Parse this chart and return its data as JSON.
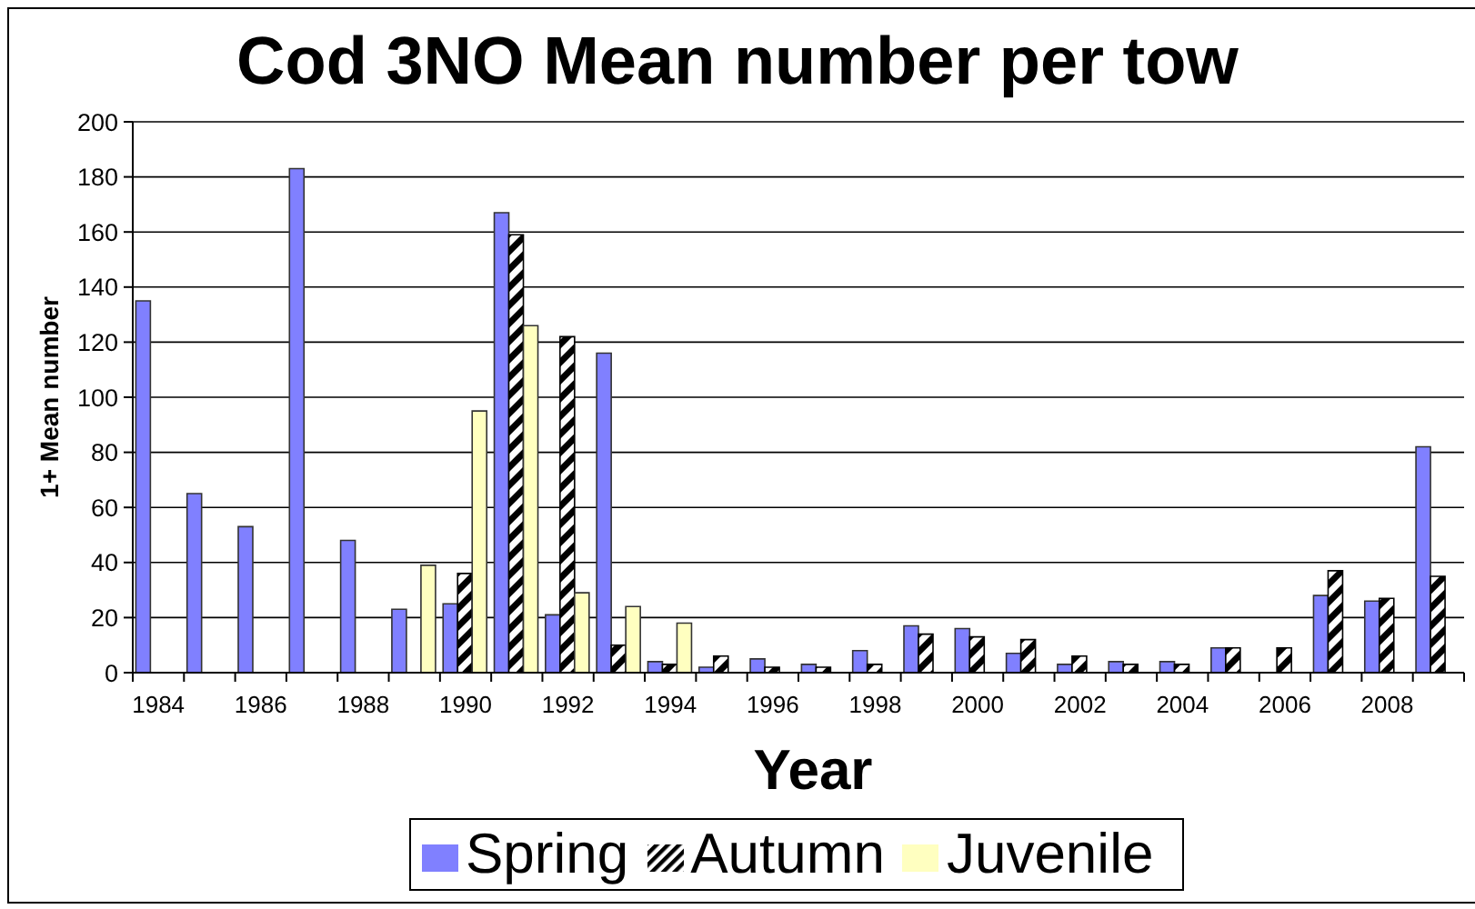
{
  "chart_data": {
    "type": "bar",
    "title": "Cod 3NO Mean number per tow",
    "xlabel": "Year",
    "ylabel": "1+ Mean number",
    "categories": [
      "1984",
      null,
      "1986",
      null,
      "1988",
      null,
      "1990",
      null,
      "1992",
      null,
      "1994",
      null,
      "1996",
      null,
      "1998",
      null,
      "2000",
      null,
      "2002",
      null,
      "2004",
      null,
      "2006",
      null,
      "2008",
      null
    ],
    "series": [
      {
        "name": "Spring",
        "color": "#8080ff",
        "values": [
          135,
          65,
          53,
          183,
          48,
          23,
          25,
          167,
          21,
          116,
          4,
          2,
          5,
          3,
          8,
          17,
          16,
          7,
          3,
          4,
          4,
          9,
          null,
          28,
          26,
          82
        ]
      },
      {
        "name": "Autumn",
        "color": "#000000",
        "values": [
          null,
          null,
          null,
          null,
          null,
          null,
          36,
          159,
          122,
          10,
          3,
          6,
          2,
          2,
          3,
          14,
          13,
          12,
          6,
          3,
          3,
          9,
          9,
          37,
          27,
          35
        ]
      },
      {
        "name": "Juvenile",
        "color": "#ffffc0",
        "values": [
          null,
          null,
          null,
          null,
          null,
          39,
          95,
          126,
          29,
          24,
          18,
          null,
          null,
          null,
          null,
          null,
          null,
          null,
          null,
          null,
          null,
          null,
          null,
          null,
          null,
          null
        ]
      }
    ],
    "ylim": [
      0,
      200
    ],
    "yticks": [
      0,
      20,
      40,
      60,
      80,
      100,
      120,
      140,
      160,
      180,
      200
    ],
    "grid": "y",
    "legend": "bottom"
  }
}
